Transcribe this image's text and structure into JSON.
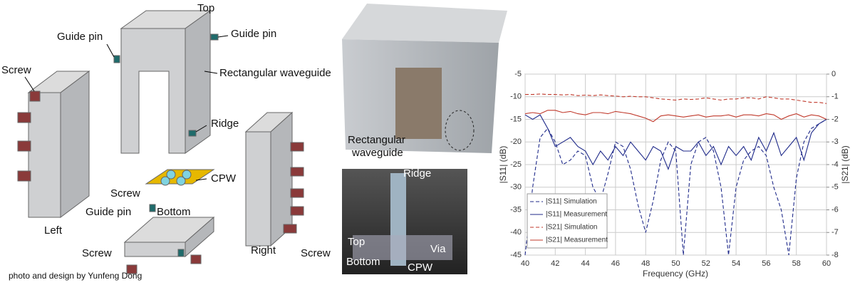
{
  "cad": {
    "top": "Top",
    "guide_pin_left": "Guide pin",
    "guide_pin_right": "Guide pin",
    "rect_waveguide": "Rectangular waveguide",
    "ridge": "Ridge",
    "screw_left": "Screw",
    "cpw": "CPW",
    "screw_mid": "Screw",
    "guide_pin_bottom": "Guide pin",
    "bottom": "Bottom",
    "screw_bottom": "Screw",
    "left": "Left",
    "right": "Right",
    "screw_right": "Screw",
    "credit": "photo and design by Yunfeng Dong"
  },
  "photo": {
    "rect_waveguide": [
      "Rectangular",
      "waveguide"
    ],
    "ridge": "Ridge",
    "top": "Top",
    "bottom": "Bottom",
    "via": "Via",
    "cpw": "CPW"
  },
  "chart_data": {
    "type": "line",
    "xlabel": "Frequency (GHz)",
    "ylabel": "|S11| (dB)",
    "y2label": "|S21| (dB)",
    "x": [
      40,
      40.5,
      41,
      41.5,
      42,
      42.5,
      43,
      43.5,
      44,
      44.5,
      45,
      45.5,
      46,
      46.5,
      47,
      47.5,
      48,
      48.5,
      49,
      49.5,
      50,
      50.5,
      51,
      51.5,
      52,
      52.5,
      53,
      53.5,
      54,
      54.5,
      55,
      55.5,
      56,
      56.5,
      57,
      57.5,
      58,
      58.5,
      59,
      59.5,
      60
    ],
    "xlim": [
      40,
      60
    ],
    "xticks": [
      40,
      42,
      44,
      46,
      48,
      50,
      52,
      54,
      56,
      58,
      60
    ],
    "ylim": [
      -45,
      -5
    ],
    "yticks": [
      -45,
      -40,
      -35,
      -30,
      -25,
      -20,
      -15,
      -10,
      -5
    ],
    "y2lim": [
      -8,
      0
    ],
    "y2ticks": [
      -8,
      -7,
      -6,
      -5,
      -4,
      -3,
      -2,
      -1,
      0
    ],
    "grid": true,
    "legend": "lower left",
    "series": [
      {
        "name": "|S11| Simulation",
        "color": "#1f2a8a",
        "dashed": true,
        "values": [
          -45,
          -30,
          -19,
          -17,
          -20,
          -25,
          -24,
          -22,
          -23,
          -30,
          -33,
          -27,
          -20,
          -21,
          -26,
          -34,
          -40,
          -33,
          -24,
          -20,
          -22,
          -45,
          -25,
          -20,
          -19,
          -22,
          -30,
          -45,
          -30,
          -24,
          -22,
          -21,
          -23,
          -30,
          -35,
          -45,
          -28,
          -20,
          -17,
          -16,
          -15
        ]
      },
      {
        "name": "|S11| Measurement",
        "color": "#1f2a8a",
        "dashed": false,
        "values": [
          -14,
          -15,
          -14,
          -17,
          -21,
          -20,
          -19,
          -21,
          -22,
          -25,
          -22,
          -24,
          -21,
          -23,
          -20,
          -22,
          -24,
          -21,
          -22,
          -26,
          -21,
          -22,
          -22,
          -20,
          -23,
          -21,
          -25,
          -21,
          -23,
          -21,
          -24,
          -19,
          -22,
          -18,
          -23,
          -21,
          -19,
          -24,
          -18,
          -16,
          -15
        ]
      },
      {
        "name": "|S21| Simulation",
        "color": "#c0392b",
        "dashed": true,
        "axis": "y2",
        "values": [
          -0.9,
          -0.9,
          -0.88,
          -0.9,
          -0.9,
          -0.92,
          -0.9,
          -0.95,
          -0.93,
          -0.95,
          -0.92,
          -0.95,
          -0.97,
          -1.0,
          -0.98,
          -1.0,
          -1.0,
          -1.05,
          -1.1,
          -1.12,
          -1.15,
          -1.1,
          -1.12,
          -1.1,
          -1.05,
          -1.1,
          -1.15,
          -1.1,
          -1.1,
          -1.05,
          -1.05,
          -1.1,
          -1.0,
          -1.05,
          -1.1,
          -1.1,
          -1.15,
          -1.2,
          -1.25,
          -1.25,
          -1.3
        ]
      },
      {
        "name": "|S21| Measurement",
        "color": "#c0392b",
        "dashed": false,
        "axis": "y2",
        "values": [
          -1.75,
          -1.7,
          -1.75,
          -1.6,
          -1.6,
          -1.7,
          -1.65,
          -1.75,
          -1.8,
          -1.7,
          -1.7,
          -1.75,
          -1.65,
          -1.7,
          -1.75,
          -1.85,
          -1.95,
          -2.1,
          -1.85,
          -1.8,
          -1.85,
          -1.9,
          -1.85,
          -1.8,
          -1.9,
          -1.85,
          -1.85,
          -1.8,
          -1.9,
          -1.8,
          -1.8,
          -1.85,
          -1.75,
          -1.8,
          -2.0,
          -1.85,
          -1.75,
          -1.9,
          -1.8,
          -1.85,
          -2.0
        ]
      }
    ]
  }
}
